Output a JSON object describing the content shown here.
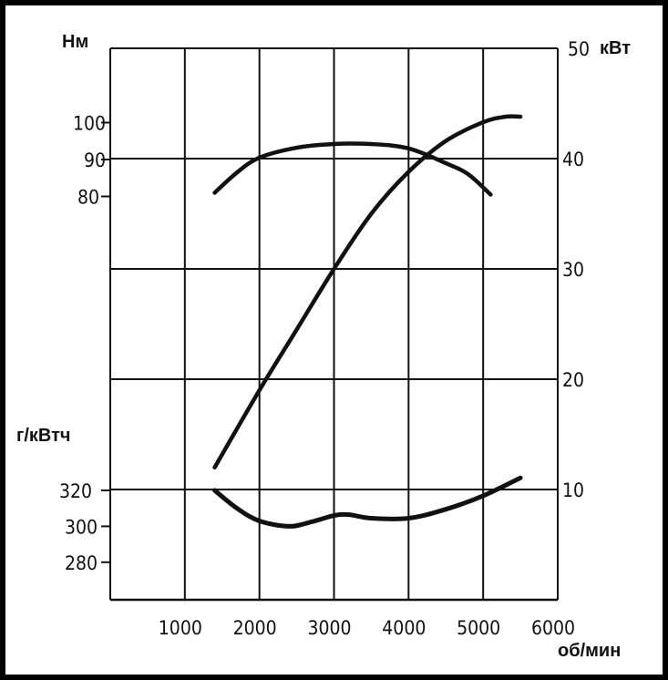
{
  "chart_data": {
    "type": "line",
    "x": {
      "label": "об/мин",
      "ticks": [
        1000,
        2000,
        3000,
        4000,
        5000,
        6000
      ],
      "range": [
        0,
        6000
      ]
    },
    "axes": {
      "torque": {
        "label": "Нм",
        "side": "left-top",
        "ticks": [
          80,
          90,
          100
        ]
      },
      "power": {
        "label": "кВт",
        "side": "right",
        "ticks": [
          10,
          20,
          30,
          40,
          50
        ],
        "range": [
          0,
          50
        ]
      },
      "bsfc": {
        "label": "г/кВтч",
        "side": "left-bottom",
        "ticks": [
          280,
          300,
          320
        ]
      }
    },
    "grid": true,
    "series": [
      {
        "axis": "power",
        "x": [
          1400,
          2000,
          2500,
          3000,
          3500,
          4000,
          4500,
          5000,
          5300,
          5500
        ],
        "y": [
          12,
          19,
          24.5,
          30,
          35,
          38.8,
          41.6,
          43.3,
          43.8,
          43.8
        ]
      },
      {
        "axis": "torque",
        "x": [
          1400,
          1700,
          2000,
          2500,
          3000,
          3500,
          4000,
          4500,
          4800,
          5100
        ],
        "y": [
          81,
          86.5,
          90.5,
          93.2,
          94.2,
          94.2,
          93,
          89,
          86,
          80.5
        ]
      },
      {
        "axis": "bsfc",
        "x": [
          1400,
          1700,
          2000,
          2400,
          2700,
          3000,
          3200,
          3500,
          4000,
          4500,
          5000,
          5500
        ],
        "y": [
          320,
          310,
          303,
          300,
          302.5,
          306,
          306.5,
          304.5,
          304.5,
          309.5,
          317,
          327
        ]
      }
    ]
  }
}
